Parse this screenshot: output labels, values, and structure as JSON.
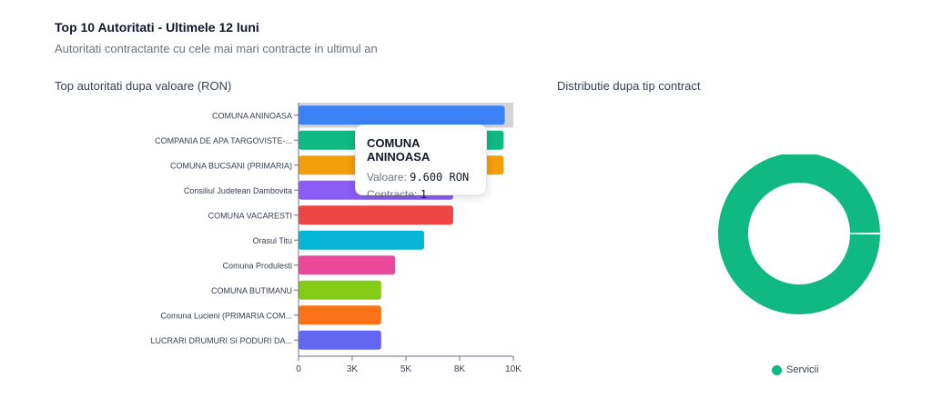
{
  "header": {
    "title": "Top 10 Autoritati - Ultimele 12 luni",
    "subtitle": "Autoritati contractante cu cele mai mari contracte in ultimul an"
  },
  "chart_data": [
    {
      "type": "bar",
      "orientation": "horizontal",
      "title": "Top autoritati dupa valoare (RON)",
      "categories": [
        "COMUNA ANINOASA",
        "COMPANIA DE APA TARGOVISTE-...",
        "COMUNA BUCSANI (PRIMARIA)",
        "Consiliul Judetean Dambovita",
        "COMUNA VACARESTI",
        "Orasul Titu",
        "Comuna Produlesti",
        "COMUNA BUTIMANU",
        "Comuna Lucieni (PRIMARIA COM...",
        "LUCRARI DRUMURI SI PODURI DA..."
      ],
      "values": [
        9600,
        9550,
        9550,
        7200,
        7200,
        5850,
        4500,
        3850,
        3850,
        3850
      ],
      "colors": [
        "#3b82f6",
        "#10b981",
        "#f59e0b",
        "#8b5cf6",
        "#ef4444",
        "#06b6d4",
        "#ec4899",
        "#84cc16",
        "#f97316",
        "#6366f1"
      ],
      "xlim": [
        0,
        10000
      ],
      "x_ticks": [
        0,
        2500,
        5000,
        7500,
        10000
      ],
      "x_tick_labels": [
        "0",
        "3K",
        "5K",
        "8K",
        "10K"
      ],
      "highlighted_index": 0,
      "tooltip": {
        "title": "COMUNA ANINOASA",
        "valoare_label": "Valoare:",
        "valoare_value": "9.600 RON",
        "contracte_label": "Contracte:",
        "contracte_value": "1"
      }
    },
    {
      "type": "pie",
      "variant": "donut",
      "title": "Distributie dupa tip contract",
      "slices": [
        {
          "name": "Servicii",
          "value": 100,
          "color": "#10b981"
        }
      ],
      "legend_position": "bottom"
    }
  ]
}
